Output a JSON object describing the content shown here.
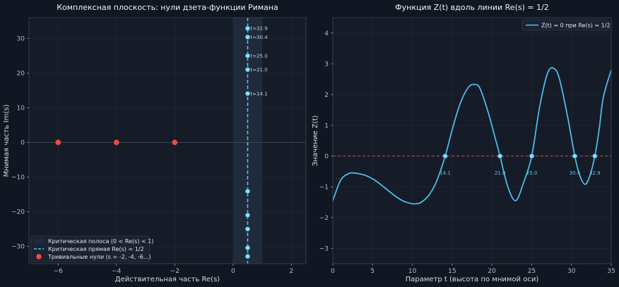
{
  "colors": {
    "background": "#111722",
    "axes_bg": "#151c28",
    "grid": "#222b39",
    "spine": "#3a4556",
    "accent": "#4ec3f2",
    "point_fill": "#8fdcf8",
    "trivial": "#f04a40",
    "strip": "#1f2a3b",
    "dashed_zero": "#c0504a"
  },
  "chart_data": [
    {
      "type": "scatter",
      "title": "Комплексная плоскость: нули дзета-функции Римана",
      "xlabel": "Действительная часть Re(s)",
      "ylabel": "Мнимая часть Im(s)",
      "xlim": [
        -7,
        2.5
      ],
      "ylim": [
        -35,
        36
      ],
      "xticks": [
        -6,
        -4,
        -2,
        0,
        2
      ],
      "yticks": [
        -30,
        -20,
        -10,
        0,
        10,
        20,
        30
      ],
      "tick_labels_x": [
        "−6",
        "−4",
        "−2",
        "0",
        "2"
      ],
      "tick_labels_y": [
        "−30",
        "−20",
        "−10",
        "0",
        "10",
        "20",
        "30"
      ],
      "grid": true,
      "critical_strip": [
        0,
        1
      ],
      "critical_line_x": 0.5,
      "nontrivial_zeros": [
        {
          "re": 0.5,
          "im": 14.1,
          "label": "t≈14.1"
        },
        {
          "re": 0.5,
          "im": 21.0,
          "label": "t≈21.0"
        },
        {
          "re": 0.5,
          "im": 25.0,
          "label": "t≈25.0"
        },
        {
          "re": 0.5,
          "im": 30.4,
          "label": "t≈30.4"
        },
        {
          "re": 0.5,
          "im": 32.9,
          "label": "t≈32.9"
        },
        {
          "re": 0.5,
          "im": -14.1,
          "label": ""
        },
        {
          "re": 0.5,
          "im": -21.0,
          "label": ""
        },
        {
          "re": 0.5,
          "im": -25.0,
          "label": ""
        },
        {
          "re": 0.5,
          "im": -30.4,
          "label": ""
        },
        {
          "re": 0.5,
          "im": -32.9,
          "label": ""
        }
      ],
      "trivial_zeros": [
        {
          "re": -6,
          "im": 0
        },
        {
          "re": -4,
          "im": 0
        },
        {
          "re": -2,
          "im": 0
        }
      ],
      "legend": {
        "position": "lower-left",
        "entries": [
          "Критическая полоса (0 < Re(s) < 1)",
          "Критическая прямая Re(s) = 1/2",
          "Тривиальные нули (s = -2, -4, -6...)"
        ]
      }
    },
    {
      "type": "line",
      "title": "Функция Z(t) вдоль линии Re(s) = 1/2",
      "xlabel": "Параметр t (высота по мнимой оси)",
      "ylabel": "Значение Z(t)",
      "xlim": [
        0,
        35
      ],
      "ylim": [
        -3.5,
        4.5
      ],
      "xticks": [
        0,
        5,
        10,
        15,
        20,
        25,
        30,
        35
      ],
      "yticks": [
        -3,
        -2,
        -1,
        0,
        1,
        2,
        3,
        4
      ],
      "tick_labels_x": [
        "0",
        "5",
        "10",
        "15",
        "20",
        "25",
        "30",
        "35"
      ],
      "tick_labels_y": [
        "−3",
        "−2",
        "−1",
        "0",
        "1",
        "2",
        "3",
        "4"
      ],
      "grid": true,
      "series": [
        {
          "name": "Z(t) = 0 при Re(s) = 1/2",
          "x": [
            0,
            1,
            2,
            2.5,
            3,
            4,
            5,
            6,
            7,
            8,
            9,
            10,
            10.5,
            11,
            12,
            13,
            14.13,
            15,
            16,
            17,
            17.8,
            18.5,
            19.5,
            20.5,
            21.02,
            22,
            23,
            24,
            25.01,
            26,
            27,
            27.8,
            28.5,
            29.5,
            30.42,
            31,
            31.7,
            32.3,
            32.94,
            33.5,
            34,
            35
          ],
          "y": [
            -1.45,
            -0.78,
            -0.57,
            -0.55,
            -0.56,
            -0.62,
            -0.74,
            -0.92,
            -1.13,
            -1.33,
            -1.48,
            -1.55,
            -1.55,
            -1.52,
            -1.3,
            -0.85,
            0.0,
            0.85,
            1.7,
            2.22,
            2.33,
            2.2,
            1.45,
            0.5,
            0.0,
            -1.0,
            -1.45,
            -0.85,
            0.0,
            1.6,
            2.7,
            2.85,
            2.5,
            1.3,
            0.0,
            -0.6,
            -0.92,
            -0.65,
            0.0,
            0.9,
            1.9,
            2.8
          ]
        }
      ],
      "zero_points": [
        {
          "t": 14.13,
          "label": "14.1"
        },
        {
          "t": 21.02,
          "label": "21.0"
        },
        {
          "t": 25.01,
          "label": "25.0"
        },
        {
          "t": 30.42,
          "label": "30.4"
        },
        {
          "t": 32.94,
          "label": "32.9"
        }
      ],
      "zero_line": 0,
      "legend": {
        "position": "top-right",
        "entries": [
          "Z(t) = 0 при Re(s) = 1/2"
        ]
      }
    }
  ]
}
